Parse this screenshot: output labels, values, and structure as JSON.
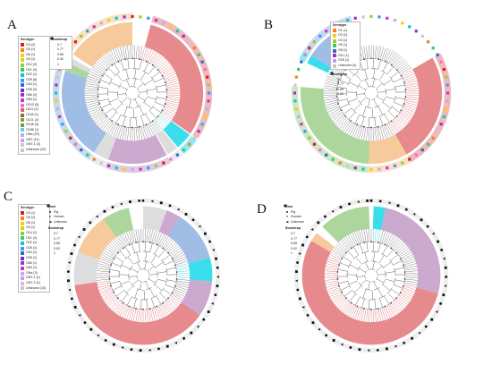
{
  "colors": {
    "red": "#e2767a",
    "orange": "#f5c18a",
    "green": "#9fcf8b",
    "blue": "#8fb3e0",
    "purple": "#c39ac6",
    "cyan": "#15d8e8",
    "gray": "#d7d7d7",
    "branch": "#555555",
    "branch_red": "#d44a4a",
    "branch_cyan": "#19bfd3"
  },
  "panels": [
    {
      "id": "A",
      "label": "A",
      "legend": {
        "serotype_title": "Serotype",
        "serotypes": [
          {
            "label": "O4 (2)",
            "color": "#e41a1c"
          },
          {
            "label": "O5 (1)",
            "color": "#f57f20"
          },
          {
            "label": "O8 (1)",
            "color": "#ffcc00"
          },
          {
            "label": "O9 (1)",
            "color": "#d6d600"
          },
          {
            "label": "O14 (2)",
            "color": "#99cc33"
          },
          {
            "label": "O21 (4)",
            "color": "#33cc66"
          },
          {
            "label": "O22 (1)",
            "color": "#00cccc"
          },
          {
            "label": "O26 (8)",
            "color": "#3399ff"
          },
          {
            "label": "O34 (1)",
            "color": "#3366cc"
          },
          {
            "label": "O45 (3)",
            "color": "#6633cc"
          },
          {
            "label": "O66 (2)",
            "color": "#9933cc"
          },
          {
            "label": "O84 (1)",
            "color": "#cc33cc"
          },
          {
            "label": "O103 (5)",
            "color": "#ff66cc"
          },
          {
            "label": "O111 (2)",
            "color": "#cc6666"
          },
          {
            "label": "O118 (1)",
            "color": "#996633"
          },
          {
            "label": "O121 (2)",
            "color": "#999933"
          },
          {
            "label": "O145 (3)",
            "color": "#669966"
          },
          {
            "label": "O186 (1)",
            "color": "#66cccc"
          },
          {
            "label": "ONa (20)",
            "color": "#b3b3e6"
          },
          {
            "label": "ONT (11)",
            "color": "#cc99ff"
          },
          {
            "label": "ONT-1 (3)",
            "color": "#e6b3e6"
          },
          {
            "label": "Unknown (22)",
            "color": "#c8c8c8"
          }
        ],
        "bootstrap_title": "Bootstrap",
        "bootstrap": [
          "0.7",
          "0.77",
          "0.85",
          "0.92",
          "1"
        ]
      }
    },
    {
      "id": "B",
      "label": "B",
      "legend": {
        "serotype_title": "Serotype",
        "serotypes": [
          {
            "label": "O1 (1)",
            "color": "#f57f20"
          },
          {
            "label": "O3 (2)",
            "color": "#ffcc00"
          },
          {
            "label": "O4 (1)",
            "color": "#99cc33"
          },
          {
            "label": "O6 (1)",
            "color": "#33cc66"
          },
          {
            "label": "O8 (1)",
            "color": "#3366cc"
          },
          {
            "label": "O11 (1)",
            "color": "#9933cc"
          },
          {
            "label": "O26 (1)",
            "color": "#cc99ff"
          },
          {
            "label": "Unknown (4)",
            "color": "#c8c8c8"
          }
        ],
        "bootstrap_title": "Bootstrap",
        "bootstrap": [
          "0.7",
          "0.77",
          "0.85",
          "0.92",
          "1"
        ]
      }
    },
    {
      "id": "C",
      "label": "C",
      "legend": {
        "serotype_title": "Serotype",
        "serotypes": [
          {
            "label": "O4 (1)",
            "color": "#e41a1c"
          },
          {
            "label": "O5 (1)",
            "color": "#f57f20"
          },
          {
            "label": "O8 (1)",
            "color": "#ffcc00"
          },
          {
            "label": "O9 (1)",
            "color": "#d6d600"
          },
          {
            "label": "O14 (1)",
            "color": "#99cc33"
          },
          {
            "label": "O21 (3)",
            "color": "#33cc66"
          },
          {
            "label": "O22 (1)",
            "color": "#00cccc"
          },
          {
            "label": "O26 (1)",
            "color": "#3399ff"
          },
          {
            "label": "O34 (1)",
            "color": "#3366cc"
          },
          {
            "label": "O45 (1)",
            "color": "#6633cc"
          },
          {
            "label": "O66 (1)",
            "color": "#9933cc"
          },
          {
            "label": "O84 (1)",
            "color": "#cc33cc"
          },
          {
            "label": "ONa (3)",
            "color": "#b3b3e6"
          },
          {
            "label": "ONT-1 (1)",
            "color": "#cc99ff"
          },
          {
            "label": "ONT-2 (1)",
            "color": "#e6b3e6"
          },
          {
            "label": "Unknown (10)",
            "color": "#c8c8c8"
          }
        ],
        "host_title": "Host",
        "hosts": [
          {
            "label": "Pig",
            "shape": "■"
          },
          {
            "label": "Human",
            "shape": "●"
          },
          {
            "label": "Unknown",
            "shape": "◀"
          }
        ],
        "bootstrap_title": "Bootstrap",
        "bootstrap": [
          "0.7",
          "0.77",
          "0.85",
          "0.92",
          "1"
        ]
      }
    },
    {
      "id": "D",
      "label": "D",
      "legend": {
        "host_title": "Host",
        "hosts": [
          {
            "label": "Pig",
            "shape": "■"
          },
          {
            "label": "Human",
            "shape": "●"
          },
          {
            "label": "Unknown",
            "shape": "◀"
          }
        ],
        "bootstrap_title": "Bootstrap",
        "bootstrap": [
          "0.7",
          "0.77",
          "0.85",
          "0.92",
          "1"
        ]
      }
    }
  ],
  "trees": [
    {
      "panel": "A",
      "clades": [
        {
          "name": "red",
          "start": 15,
          "end": 125,
          "color": "#e2767a"
        },
        {
          "name": "cyan",
          "start": 126,
          "end": 140,
          "color": "#15d8e8"
        },
        {
          "name": "gray",
          "start": 141,
          "end": 150,
          "color": "#d7d7d7"
        },
        {
          "name": "purple",
          "start": 151,
          "end": 200,
          "color": "#c39ac6"
        },
        {
          "name": "gray2",
          "start": 200,
          "end": 213,
          "color": "#d7d7d7"
        },
        {
          "name": "blue",
          "start": 213,
          "end": 288,
          "color": "#8fb3e0"
        },
        {
          "name": "green",
          "start": 288,
          "end": 295,
          "color": "#9fcf8b"
        },
        {
          "name": "gray3",
          "start": 295,
          "end": 300,
          "color": "#d7d7d7"
        },
        {
          "name": "orange",
          "start": 303,
          "end": 360,
          "color": "#f5c18a"
        }
      ],
      "ring": "squares"
    },
    {
      "panel": "B",
      "clades": [
        {
          "name": "white",
          "start": 5,
          "end": 60,
          "color": "#ffffff"
        },
        {
          "name": "red",
          "start": 60,
          "end": 150,
          "color": "#e2767a"
        },
        {
          "name": "orange",
          "start": 150,
          "end": 182,
          "color": "#f5c18a"
        },
        {
          "name": "green",
          "start": 182,
          "end": 275,
          "color": "#9fcf8b"
        },
        {
          "name": "cyan",
          "start": 295,
          "end": 302,
          "color": "#15d8e8"
        },
        {
          "name": "blue",
          "start": 302,
          "end": 345,
          "color": "#8fb3e0"
        }
      ],
      "ring": "squares"
    },
    {
      "panel": "C",
      "clades": [
        {
          "name": "gray",
          "start": 0,
          "end": 20,
          "color": "#d7d7d7"
        },
        {
          "name": "purple",
          "start": 20,
          "end": 32,
          "color": "#c39ac6"
        },
        {
          "name": "blue",
          "start": 32,
          "end": 75,
          "color": "#8fb3e0"
        },
        {
          "name": "cyan",
          "start": 75,
          "end": 95,
          "color": "#15d8e8"
        },
        {
          "name": "purple2",
          "start": 95,
          "end": 125,
          "color": "#c39ac6"
        },
        {
          "name": "red",
          "start": 125,
          "end": 262,
          "color": "#e2767a"
        },
        {
          "name": "gray2",
          "start": 262,
          "end": 290,
          "color": "#d7d7d7"
        },
        {
          "name": "orange",
          "start": 290,
          "end": 325,
          "color": "#f5c18a"
        },
        {
          "name": "green",
          "start": 325,
          "end": 348,
          "color": "#9fcf8b"
        }
      ],
      "ring": "shapes"
    },
    {
      "panel": "D",
      "clades": [
        {
          "name": "green",
          "start": 315,
          "end": 358,
          "color": "#9fcf8b"
        },
        {
          "name": "cyan",
          "start": 2,
          "end": 12,
          "color": "#15d8e8"
        },
        {
          "name": "purple",
          "start": 12,
          "end": 105,
          "color": "#c39ac6"
        },
        {
          "name": "red",
          "start": 105,
          "end": 300,
          "color": "#e2767a"
        },
        {
          "name": "orange",
          "start": 300,
          "end": 308,
          "color": "#f5c18a"
        }
      ],
      "ring": "shapes"
    }
  ]
}
